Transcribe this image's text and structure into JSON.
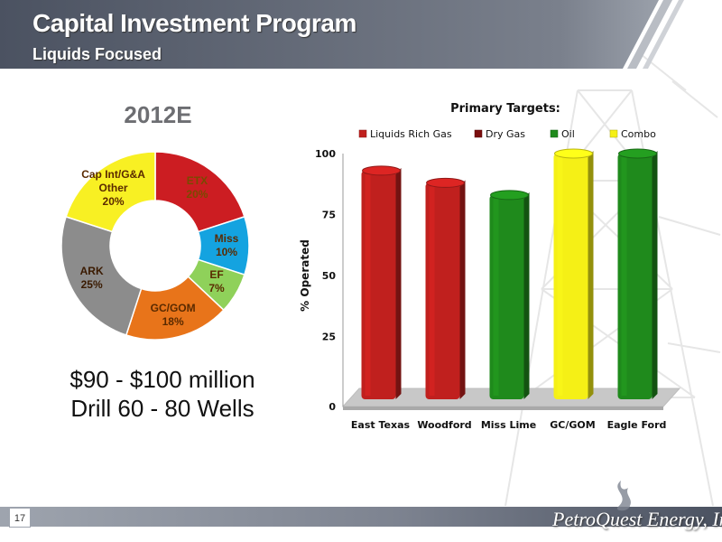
{
  "header": {
    "title": "Capital Investment Program",
    "subtitle": "Liquids Focused"
  },
  "page_number": "17",
  "company": "PetroQuest Energy, Inc.",
  "pie": {
    "heading": "2012E",
    "notes": [
      "$90 - $100 million",
      "Drill 60 - 80 Wells"
    ]
  },
  "colors": {
    "header": "#5a6170",
    "liquids_rich_gas": "#c0201e",
    "dry_gas": "#7a0d0d",
    "oil": "#1f8a1c",
    "combo": "#f5f016",
    "pie_etx": "#cc1d22",
    "pie_miss": "#14a3e0",
    "pie_ef": "#8fd15a",
    "pie_gcgom": "#e8741a",
    "pie_ark": "#8c8c8c",
    "pie_capint": "#f8f023"
  },
  "chart_data": [
    {
      "type": "pie",
      "title": "2012E",
      "style": "doughnut",
      "slices": [
        {
          "label": "ETX",
          "value": 20,
          "display": "ETX\n20%",
          "color": "#cc1d22",
          "text_color": "#7a4a00"
        },
        {
          "label": "Miss",
          "value": 10,
          "display": "Miss\n10%",
          "color": "#14a3e0",
          "text_color": "#5a2a00"
        },
        {
          "label": "EF",
          "value": 7,
          "display": "EF\n7%",
          "color": "#8fd15a",
          "text_color": "#5a2a00"
        },
        {
          "label": "GC/GOM",
          "value": 18,
          "display": "GC/GOM\n18%",
          "color": "#e8741a",
          "text_color": "#5a2a00"
        },
        {
          "label": "ARK",
          "value": 25,
          "display": "ARK\n25%",
          "color": "#8c8c8c",
          "text_color": "#3a1a00"
        },
        {
          "label": "Cap Int/G&A Other",
          "value": 20,
          "display": "Cap Int/G&A\nOther\n20%",
          "color": "#f8f023",
          "text_color": "#5a2a00"
        }
      ]
    },
    {
      "type": "bar",
      "title": "Primary Targets:",
      "xlabel": "",
      "ylabel": "% Operated",
      "ylim": [
        0,
        100
      ],
      "yticks": [
        "0",
        "25",
        "50",
        "75",
        "100"
      ],
      "legend_position": "top",
      "legend": [
        {
          "name": "Liquids Rich Gas",
          "color": "#c0201e"
        },
        {
          "name": "Dry Gas",
          "color": "#7a0d0d"
        },
        {
          "name": "Oil",
          "color": "#1f8a1c"
        },
        {
          "name": "Combo",
          "color": "#f5f016"
        }
      ],
      "categories": [
        "East Texas",
        "Woodford",
        "Miss Lime",
        "GC/GOM",
        "Eagle Ford"
      ],
      "values": [
        93,
        88,
        83,
        100,
        100
      ],
      "bar_series": [
        "Liquids Rich Gas",
        "Liquids Rich Gas",
        "Oil",
        "Combo",
        "Oil"
      ],
      "bar_colors": [
        "#c0201e",
        "#c0201e",
        "#1f8a1c",
        "#f5f016",
        "#1f8a1c"
      ],
      "grid": false
    }
  ]
}
